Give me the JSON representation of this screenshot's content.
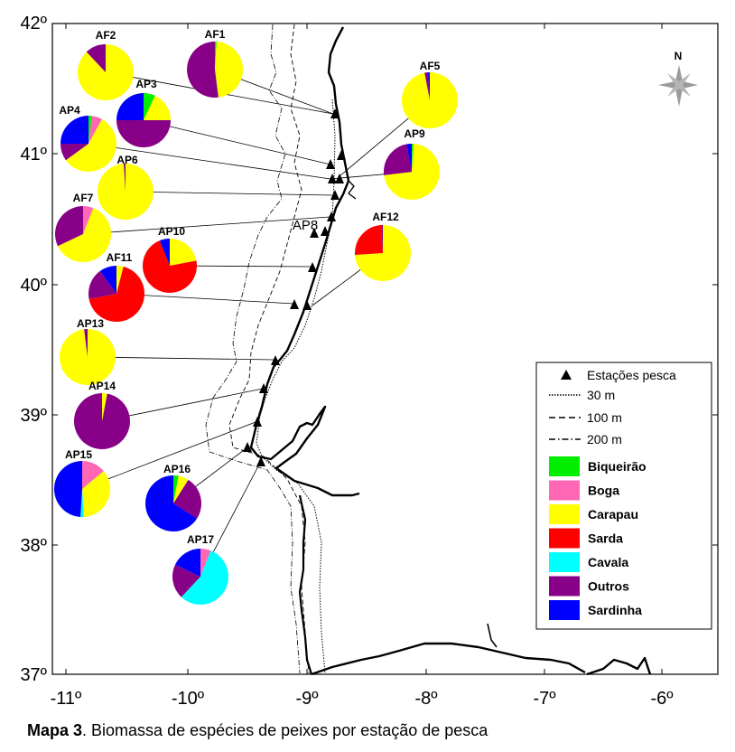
{
  "caption": {
    "bold": "Mapa 3",
    "text": ". Biomassa de espécies de peixes por estação de pesca"
  },
  "compass": {
    "label": "N"
  },
  "axes": {
    "y_ticks": [
      "42º",
      "41º",
      "40º",
      "39º",
      "38º",
      "37º"
    ],
    "x_ticks": [
      "-11º",
      "-10º",
      "-9º",
      "-8º",
      "-7º",
      "-6º"
    ]
  },
  "legend": {
    "stations": "Estações pesca",
    "isobaths": [
      "30 m",
      "100 m",
      "200 m"
    ],
    "species": [
      {
        "name": "Biqueirão",
        "color": "#00ee00"
      },
      {
        "name": "Boga",
        "color": "#ff66b3"
      },
      {
        "name": "Carapau",
        "color": "#ffff00"
      },
      {
        "name": "Sarda",
        "color": "#ff0000"
      },
      {
        "name": "Cavala",
        "color": "#00ffff"
      },
      {
        "name": "Outros",
        "color": "#880088"
      },
      {
        "name": "Sardinha",
        "color": "#0000ff"
      }
    ]
  },
  "stations": [
    {
      "label": "AF2",
      "composition": {
        "Carapau": 0.88,
        "Outros": 0.12
      }
    },
    {
      "label": "AF1",
      "composition": {
        "Biqueirão": 0.01,
        "Carapau": 0.47,
        "Outros": 0.52
      }
    },
    {
      "label": "AF5",
      "composition": {
        "Carapau": 0.97,
        "Outros": 0.02,
        "Sardinha": 0.01
      }
    },
    {
      "label": "AP3",
      "composition": {
        "Biqueirão": 0.07,
        "Carapau": 0.18,
        "Sardinha": 0.25,
        "Outros": 0.5
      }
    },
    {
      "label": "AP4",
      "composition": {
        "Biqueirão": 0.02,
        "Boga": 0.06,
        "Outros": 0.1,
        "Sardinha": 0.25,
        "Carapau": 0.57
      }
    },
    {
      "label": "AP9",
      "composition": {
        "Carapau": 0.72,
        "Outros": 0.24,
        "Sardinha": 0.03,
        "Biqueirão": 0.01
      }
    },
    {
      "label": "AP6",
      "composition": {
        "Carapau": 0.99,
        "Outros": 0.01
      }
    },
    {
      "label": "AF7",
      "composition": {
        "Boga": 0.06,
        "Outros": 0.32,
        "Carapau": 0.62
      }
    },
    {
      "label": "AP8",
      "composition": {}
    },
    {
      "label": "AF12",
      "composition": {
        "Sarda": 0.25,
        "Carapau": 0.74,
        "Outros": 0.01
      }
    },
    {
      "label": "AP10",
      "composition": {
        "Carapau": 0.22,
        "Sarda": 0.72,
        "Sardinha": 0.06
      }
    },
    {
      "label": "AF11",
      "composition": {
        "Carapau": 0.04,
        "Sardinha": 0.1,
        "Outros": 0.18,
        "Sarda": 0.68
      }
    },
    {
      "label": "AP13",
      "composition": {
        "Outros": 0.02,
        "Carapau": 0.98
      }
    },
    {
      "label": "AP14",
      "composition": {
        "Carapau": 0.03,
        "Outros": 0.97
      }
    },
    {
      "label": "AP15",
      "composition": {
        "Cavala": 0.02,
        "Boga": 0.14,
        "Carapau": 0.35,
        "Sardinha": 0.49
      }
    },
    {
      "label": "AP16",
      "composition": {
        "Biqueirão": 0.03,
        "Carapau": 0.06,
        "Outros": 0.25,
        "Sardinha": 0.66
      }
    },
    {
      "label": "AP17",
      "composition": {
        "Boga": 0.06,
        "Sardinha": 0.18,
        "Outros": 0.2,
        "Cavala": 0.56
      }
    }
  ]
}
